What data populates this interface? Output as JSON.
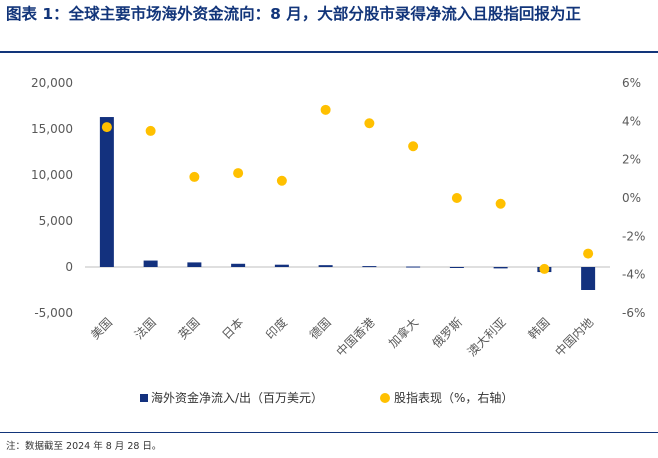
{
  "header": {
    "title": "图表 1：全球主要市场海外资金流向：8 月，大部分股市录得净流入且股指回报为正"
  },
  "footer": {
    "note": "注：数据截至 2024 年 8 月 28 日。"
  },
  "colors": {
    "title": "#12357a",
    "bar": "#13317e",
    "dot": "#ffc000",
    "axis_text": "#595959"
  },
  "chart_data": {
    "type": "bar",
    "categories": [
      "美国",
      "法国",
      "英国",
      "日本",
      "印度",
      "德国",
      "中国香港",
      "加拿大",
      "俄罗斯",
      "澳大利亚",
      "韩国",
      "中国内地"
    ],
    "series": [
      {
        "name": "海外资金净流入/出（百万美元）",
        "type": "bar",
        "axis": "left",
        "values": [
          16300,
          700,
          500,
          350,
          250,
          200,
          100,
          50,
          -50,
          -150,
          -550,
          -2500
        ]
      },
      {
        "name": "股指表现（%，右轴）",
        "type": "scatter",
        "axis": "right",
        "values": [
          3.7,
          3.5,
          1.1,
          1.3,
          0.9,
          4.6,
          3.9,
          2.7,
          0.0,
          -0.3,
          -3.7,
          -2.9
        ]
      }
    ],
    "y_left": {
      "ylim": [
        -5000,
        20000
      ],
      "ticks": [
        -5000,
        0,
        5000,
        10000,
        15000,
        20000
      ],
      "tick_labels": [
        "-5,000",
        "0",
        "5,000",
        "10,000",
        "15,000",
        "20,000"
      ]
    },
    "y_right": {
      "ylim": [
        -6,
        6
      ],
      "ticks": [
        -6,
        -4,
        -2,
        0,
        2,
        4,
        6
      ],
      "tick_labels": [
        "-6%",
        "-4%",
        "-2%",
        "0%",
        "2%",
        "4%",
        "6%"
      ]
    },
    "grid": false,
    "legend": "bottom"
  }
}
